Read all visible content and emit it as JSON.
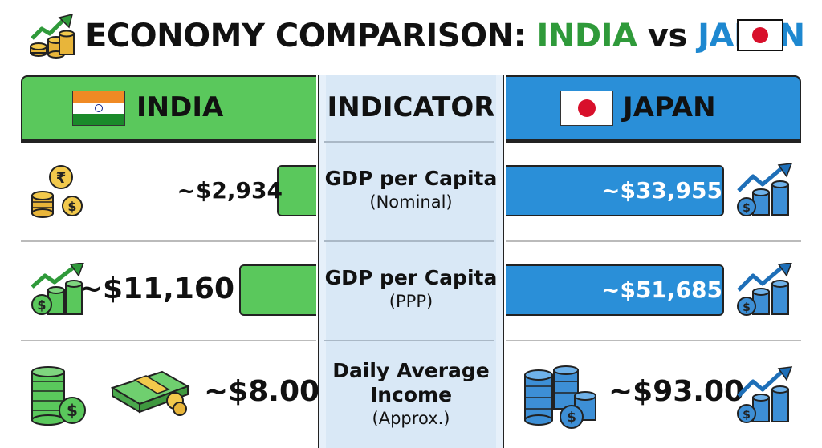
{
  "title": {
    "prefix": "ECONOMY COMPARISON: ",
    "india": "INDIA",
    "vs": " vs ",
    "japan": "JAPAN"
  },
  "columns": {
    "india": "INDIA",
    "indicator": "INDICATOR",
    "japan": "JAPAN"
  },
  "colors": {
    "india": "#5ac85c",
    "japan": "#2a8fd8",
    "india_title": "#2f9a3a",
    "japan_title": "#1e88d0",
    "indicator_bg": "#d9e8f6"
  },
  "chart_data": {
    "type": "bar",
    "categories": [
      "GDP per Capita (Nominal)",
      "GDP per Capita (PPP)",
      "Daily Average Income (Approx.)"
    ],
    "series": [
      {
        "name": "INDIA",
        "values": [
          2934,
          11160,
          8.0
        ],
        "labels": [
          "~$2,934",
          "~$11,160",
          "~$8.00"
        ]
      },
      {
        "name": "JAPAN",
        "values": [
          33955,
          51685,
          93.0
        ],
        "labels": [
          "~$33,955",
          "~$51,685",
          "~$93.00"
        ]
      }
    ]
  },
  "rows": [
    {
      "line1": "GDP per Capita",
      "line2": "(Nominal)",
      "india_value": "~$2,934",
      "japan_value": "~$33,955"
    },
    {
      "line1": "GDP per Capita",
      "line2": "(PPP)",
      "india_value": "~$11,160",
      "japan_value": "~$51,685"
    },
    {
      "line1": "Daily Average",
      "line1b": "Income",
      "line2": "(Approx.)",
      "india_value": "~$8.00",
      "japan_value": "~$93.00"
    }
  ],
  "icons": {
    "title": "money-growth-chart-icon",
    "india_row1": "rupee-coins-icon",
    "india_row2": "dollar-growth-icon",
    "india_row3a": "coin-stack-icon",
    "india_row3b": "cash-bundle-icon",
    "japan_row1": "coin-growth-icon",
    "japan_row2": "coin-growth-icon",
    "japan_row3a": "blue-coin-stacks-icon",
    "japan_row3b": "coin-growth-icon"
  }
}
